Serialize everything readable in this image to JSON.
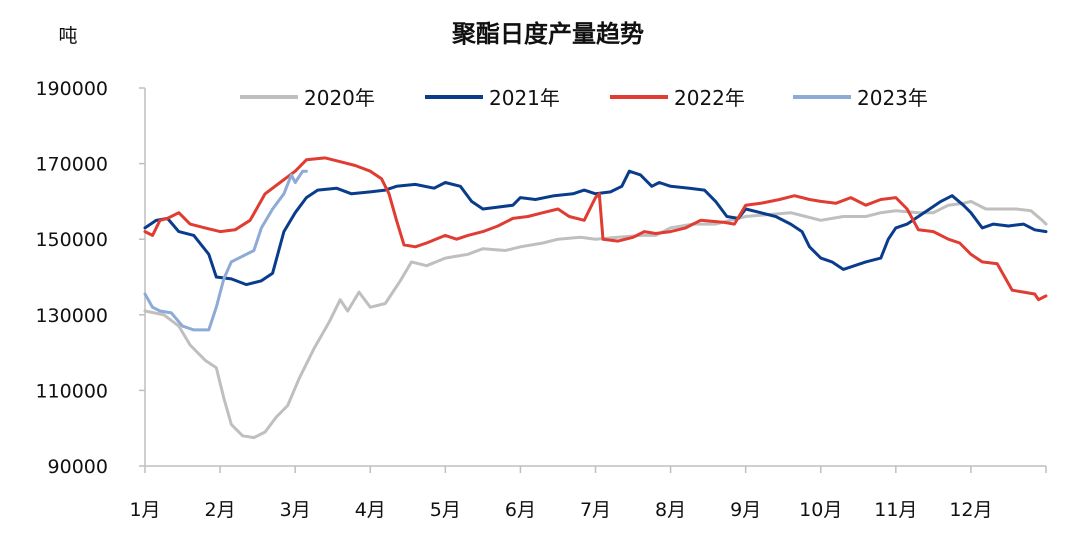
{
  "chart_data": {
    "type": "line",
    "title": "聚酯日度产量趋势",
    "ylabel": "吨",
    "xlabel": "",
    "ylim": [
      90000,
      190000
    ],
    "yticks": [
      90000,
      110000,
      130000,
      150000,
      170000,
      190000
    ],
    "xlim": [
      1,
      13
    ],
    "categories": [
      "1月",
      "2月",
      "3月",
      "4月",
      "5月",
      "6月",
      "7月",
      "8月",
      "9月",
      "10月",
      "11月",
      "12月"
    ],
    "legend_position": "top",
    "grid": false,
    "series": [
      {
        "name": "2020年",
        "color": "#bfbfbf",
        "points": [
          [
            1.0,
            131000
          ],
          [
            1.25,
            130000
          ],
          [
            1.45,
            127000
          ],
          [
            1.6,
            122000
          ],
          [
            1.8,
            118000
          ],
          [
            1.95,
            116000
          ],
          [
            2.05,
            108000
          ],
          [
            2.15,
            101000
          ],
          [
            2.3,
            98000
          ],
          [
            2.45,
            97500
          ],
          [
            2.6,
            99000
          ],
          [
            2.75,
            103000
          ],
          [
            2.9,
            106000
          ],
          [
            3.05,
            113000
          ],
          [
            3.25,
            121000
          ],
          [
            3.45,
            128000
          ],
          [
            3.6,
            134000
          ],
          [
            3.7,
            131000
          ],
          [
            3.85,
            136000
          ],
          [
            4.0,
            132000
          ],
          [
            4.2,
            133000
          ],
          [
            4.4,
            139000
          ],
          [
            4.55,
            144000
          ],
          [
            4.75,
            143000
          ],
          [
            5.0,
            145000
          ],
          [
            5.3,
            146000
          ],
          [
            5.5,
            147500
          ],
          [
            5.8,
            147000
          ],
          [
            6.0,
            148000
          ],
          [
            6.3,
            149000
          ],
          [
            6.5,
            150000
          ],
          [
            6.8,
            150500
          ],
          [
            7.0,
            150000
          ],
          [
            7.3,
            150500
          ],
          [
            7.6,
            151000
          ],
          [
            7.8,
            151000
          ],
          [
            8.0,
            153000
          ],
          [
            8.3,
            154000
          ],
          [
            8.6,
            154000
          ],
          [
            8.8,
            155000
          ],
          [
            9.0,
            156000
          ],
          [
            9.3,
            156500
          ],
          [
            9.6,
            157000
          ],
          [
            9.8,
            156000
          ],
          [
            10.0,
            155000
          ],
          [
            10.3,
            156000
          ],
          [
            10.6,
            156000
          ],
          [
            10.8,
            157000
          ],
          [
            11.0,
            157500
          ],
          [
            11.3,
            157000
          ],
          [
            11.5,
            157000
          ],
          [
            11.7,
            159000
          ],
          [
            11.9,
            159500
          ],
          [
            12.0,
            160000
          ],
          [
            12.2,
            158000
          ],
          [
            12.4,
            158000
          ],
          [
            12.6,
            158000
          ],
          [
            12.8,
            157500
          ],
          [
            12.95,
            155000
          ],
          [
            13.0,
            154000
          ]
        ]
      },
      {
        "name": "2021年",
        "color": "#0a3c8c",
        "points": [
          [
            1.0,
            153000
          ],
          [
            1.15,
            155000
          ],
          [
            1.3,
            155500
          ],
          [
            1.45,
            152000
          ],
          [
            1.65,
            151000
          ],
          [
            1.85,
            146000
          ],
          [
            1.95,
            140000
          ],
          [
            2.15,
            139500
          ],
          [
            2.35,
            138000
          ],
          [
            2.55,
            139000
          ],
          [
            2.7,
            141000
          ],
          [
            2.85,
            152000
          ],
          [
            3.0,
            157000
          ],
          [
            3.15,
            161000
          ],
          [
            3.3,
            163000
          ],
          [
            3.55,
            163500
          ],
          [
            3.75,
            162000
          ],
          [
            4.0,
            162500
          ],
          [
            4.2,
            163000
          ],
          [
            4.35,
            164000
          ],
          [
            4.6,
            164500
          ],
          [
            4.85,
            163500
          ],
          [
            5.0,
            165000
          ],
          [
            5.2,
            164000
          ],
          [
            5.35,
            160000
          ],
          [
            5.5,
            158000
          ],
          [
            5.7,
            158500
          ],
          [
            5.9,
            159000
          ],
          [
            6.0,
            161000
          ],
          [
            6.2,
            160500
          ],
          [
            6.45,
            161500
          ],
          [
            6.7,
            162000
          ],
          [
            6.85,
            163000
          ],
          [
            7.0,
            162000
          ],
          [
            7.2,
            162500
          ],
          [
            7.35,
            164000
          ],
          [
            7.45,
            168000
          ],
          [
            7.6,
            167000
          ],
          [
            7.75,
            164000
          ],
          [
            7.85,
            165000
          ],
          [
            8.0,
            164000
          ],
          [
            8.25,
            163500
          ],
          [
            8.45,
            163000
          ],
          [
            8.6,
            160000
          ],
          [
            8.75,
            156000
          ],
          [
            8.9,
            155500
          ],
          [
            9.0,
            158000
          ],
          [
            9.2,
            157000
          ],
          [
            9.4,
            156000
          ],
          [
            9.6,
            154000
          ],
          [
            9.75,
            152000
          ],
          [
            9.85,
            148000
          ],
          [
            10.0,
            145000
          ],
          [
            10.15,
            144000
          ],
          [
            10.3,
            142000
          ],
          [
            10.45,
            143000
          ],
          [
            10.6,
            144000
          ],
          [
            10.8,
            145000
          ],
          [
            10.9,
            150000
          ],
          [
            11.0,
            153000
          ],
          [
            11.15,
            154000
          ],
          [
            11.3,
            156000
          ],
          [
            11.45,
            158000
          ],
          [
            11.6,
            160000
          ],
          [
            11.75,
            161500
          ],
          [
            11.9,
            159000
          ],
          [
            12.0,
            157000
          ],
          [
            12.15,
            153000
          ],
          [
            12.3,
            154000
          ],
          [
            12.5,
            153500
          ],
          [
            12.7,
            154000
          ],
          [
            12.85,
            152500
          ],
          [
            13.0,
            152000
          ]
        ]
      },
      {
        "name": "2022年",
        "color": "#e03c31",
        "points": [
          [
            1.0,
            152000
          ],
          [
            1.1,
            151000
          ],
          [
            1.2,
            155000
          ],
          [
            1.3,
            155500
          ],
          [
            1.45,
            157000
          ],
          [
            1.6,
            154000
          ],
          [
            1.8,
            153000
          ],
          [
            2.0,
            152000
          ],
          [
            2.2,
            152500
          ],
          [
            2.4,
            155000
          ],
          [
            2.6,
            162000
          ],
          [
            2.8,
            165000
          ],
          [
            3.0,
            168000
          ],
          [
            3.15,
            171000
          ],
          [
            3.4,
            171500
          ],
          [
            3.6,
            170500
          ],
          [
            3.8,
            169500
          ],
          [
            4.0,
            168000
          ],
          [
            4.15,
            166000
          ],
          [
            4.25,
            162000
          ],
          [
            4.35,
            155000
          ],
          [
            4.45,
            148500
          ],
          [
            4.6,
            148000
          ],
          [
            4.75,
            149000
          ],
          [
            5.0,
            151000
          ],
          [
            5.15,
            150000
          ],
          [
            5.3,
            151000
          ],
          [
            5.5,
            152000
          ],
          [
            5.7,
            153500
          ],
          [
            5.9,
            155500
          ],
          [
            6.1,
            156000
          ],
          [
            6.3,
            157000
          ],
          [
            6.5,
            158000
          ],
          [
            6.65,
            156000
          ],
          [
            6.85,
            155000
          ],
          [
            7.0,
            161000
          ],
          [
            7.05,
            162000
          ],
          [
            7.1,
            150000
          ],
          [
            7.3,
            149500
          ],
          [
            7.5,
            150500
          ],
          [
            7.65,
            152000
          ],
          [
            7.8,
            151500
          ],
          [
            8.0,
            152000
          ],
          [
            8.2,
            153000
          ],
          [
            8.4,
            155000
          ],
          [
            8.7,
            154500
          ],
          [
            8.85,
            154000
          ],
          [
            9.0,
            159000
          ],
          [
            9.2,
            159500
          ],
          [
            9.45,
            160500
          ],
          [
            9.65,
            161500
          ],
          [
            9.85,
            160500
          ],
          [
            10.0,
            160000
          ],
          [
            10.2,
            159500
          ],
          [
            10.4,
            161000
          ],
          [
            10.6,
            159000
          ],
          [
            10.8,
            160500
          ],
          [
            11.0,
            161000
          ],
          [
            11.15,
            158000
          ],
          [
            11.3,
            152500
          ],
          [
            11.5,
            152000
          ],
          [
            11.7,
            150000
          ],
          [
            11.85,
            149000
          ],
          [
            12.0,
            146000
          ],
          [
            12.15,
            144000
          ],
          [
            12.35,
            143500
          ],
          [
            12.45,
            140000
          ],
          [
            12.55,
            136500
          ],
          [
            12.7,
            136000
          ],
          [
            12.85,
            135500
          ],
          [
            12.9,
            134000
          ],
          [
            13.0,
            135000
          ]
        ]
      },
      {
        "name": "2023年",
        "color": "#8eaad6",
        "points": [
          [
            1.0,
            135500
          ],
          [
            1.1,
            132000
          ],
          [
            1.2,
            131000
          ],
          [
            1.35,
            130500
          ],
          [
            1.5,
            127000
          ],
          [
            1.65,
            126000
          ],
          [
            1.85,
            126000
          ],
          [
            1.95,
            132000
          ],
          [
            2.05,
            139500
          ],
          [
            2.15,
            144000
          ],
          [
            2.3,
            145500
          ],
          [
            2.45,
            147000
          ],
          [
            2.55,
            153000
          ],
          [
            2.7,
            158000
          ],
          [
            2.85,
            162000
          ],
          [
            2.95,
            167000
          ],
          [
            3.0,
            165000
          ],
          [
            3.1,
            168000
          ],
          [
            3.15,
            168000
          ]
        ]
      }
    ]
  }
}
